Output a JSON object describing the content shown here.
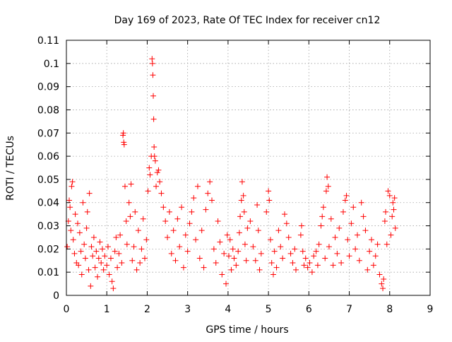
{
  "chart_data": {
    "type": "scatter",
    "title": "Day 169 of 2023, Rate Of TEC Index for receiver cn12",
    "xlabel": "GPS time / hours",
    "ylabel": "ROTI / TECUs",
    "xlim": [
      0,
      9
    ],
    "ylim": [
      0,
      0.11
    ],
    "xticks": [
      0,
      1,
      2,
      3,
      4,
      5,
      6,
      7,
      8,
      9
    ],
    "xtick_labels": [
      "0",
      "1",
      "2",
      "3",
      "4",
      "5",
      "6",
      "7",
      "8",
      "9"
    ],
    "yticks": [
      0,
      0.01,
      0.02,
      0.03,
      0.04,
      0.05,
      0.06,
      0.07,
      0.08,
      0.09,
      0.1,
      0.11
    ],
    "ytick_labels": [
      "0",
      "0.01",
      "0.02",
      "0.03",
      "0.04",
      "0.05",
      "0.06",
      "0.07",
      "0.08",
      "0.09",
      "0.1",
      "0.11"
    ],
    "grid": true,
    "marker": "+",
    "marker_color": "#ff0000",
    "series": [
      {
        "points": [
          [
            0.02,
            0.021
          ],
          [
            0.05,
            0.032
          ],
          [
            0.07,
            0.041
          ],
          [
            0.09,
            0.038
          ],
          [
            0.11,
            0.028
          ],
          [
            0.13,
            0.047
          ],
          [
            0.15,
            0.049
          ],
          [
            0.17,
            0.024
          ],
          [
            0.2,
            0.018
          ],
          [
            0.22,
            0.035
          ],
          [
            0.25,
            0.014
          ],
          [
            0.28,
            0.031
          ],
          [
            0.3,
            0.013
          ],
          [
            0.33,
            0.027
          ],
          [
            0.36,
            0.019
          ],
          [
            0.38,
            0.009
          ],
          [
            0.41,
            0.04
          ],
          [
            0.44,
            0.022
          ],
          [
            0.47,
            0.016
          ],
          [
            0.5,
            0.029
          ],
          [
            0.52,
            0.036
          ],
          [
            0.55,
            0.011
          ],
          [
            0.57,
            0.044
          ],
          [
            0.6,
            0.004
          ],
          [
            0.62,
            0.021
          ],
          [
            0.65,
            0.017
          ],
          [
            0.68,
            0.025
          ],
          [
            0.71,
            0.012
          ],
          [
            0.74,
            0.019
          ],
          [
            0.77,
            0.008
          ],
          [
            0.8,
            0.016
          ],
          [
            0.83,
            0.023
          ],
          [
            0.86,
            0.014
          ],
          [
            0.89,
            0.02
          ],
          [
            0.92,
            0.011
          ],
          [
            0.95,
            0.017
          ],
          [
            1.0,
            0.013
          ],
          [
            1.03,
            0.021
          ],
          [
            1.06,
            0.009
          ],
          [
            1.1,
            0.016
          ],
          [
            1.13,
            0.006
          ],
          [
            1.16,
            0.003
          ],
          [
            1.2,
            0.019
          ],
          [
            1.23,
            0.025
          ],
          [
            1.26,
            0.012
          ],
          [
            1.3,
            0.018
          ],
          [
            1.33,
            0.026
          ],
          [
            1.37,
            0.014
          ],
          [
            1.4,
            0.069
          ],
          [
            1.41,
            0.07
          ],
          [
            1.42,
            0.066
          ],
          [
            1.43,
            0.065
          ],
          [
            1.45,
            0.047
          ],
          [
            1.48,
            0.032
          ],
          [
            1.5,
            0.022
          ],
          [
            1.55,
            0.04
          ],
          [
            1.58,
            0.034
          ],
          [
            1.6,
            0.048
          ],
          [
            1.63,
            0.015
          ],
          [
            1.67,
            0.021
          ],
          [
            1.7,
            0.036
          ],
          [
            1.74,
            0.011
          ],
          [
            1.78,
            0.028
          ],
          [
            1.82,
            0.014
          ],
          [
            1.86,
            0.02
          ],
          [
            1.9,
            0.033
          ],
          [
            1.94,
            0.016
          ],
          [
            1.98,
            0.024
          ],
          [
            2.02,
            0.045
          ],
          [
            2.05,
            0.055
          ],
          [
            2.07,
            0.052
          ],
          [
            2.1,
            0.06
          ],
          [
            2.12,
            0.102
          ],
          [
            2.13,
            0.1
          ],
          [
            2.14,
            0.095
          ],
          [
            2.15,
            0.086
          ],
          [
            2.16,
            0.076
          ],
          [
            2.17,
            0.064
          ],
          [
            2.18,
            0.06
          ],
          [
            2.2,
            0.058
          ],
          [
            2.22,
            0.047
          ],
          [
            2.25,
            0.053
          ],
          [
            2.28,
            0.054
          ],
          [
            2.31,
            0.049
          ],
          [
            2.35,
            0.044
          ],
          [
            2.4,
            0.038
          ],
          [
            2.45,
            0.032
          ],
          [
            2.5,
            0.025
          ],
          [
            2.55,
            0.036
          ],
          [
            2.6,
            0.018
          ],
          [
            2.65,
            0.028
          ],
          [
            2.7,
            0.015
          ],
          [
            2.75,
            0.033
          ],
          [
            2.8,
            0.021
          ],
          [
            2.85,
            0.038
          ],
          [
            2.9,
            0.012
          ],
          [
            2.95,
            0.026
          ],
          [
            3.0,
            0.019
          ],
          [
            3.05,
            0.031
          ],
          [
            3.1,
            0.036
          ],
          [
            3.15,
            0.042
          ],
          [
            3.2,
            0.024
          ],
          [
            3.25,
            0.047
          ],
          [
            3.3,
            0.016
          ],
          [
            3.35,
            0.028
          ],
          [
            3.4,
            0.012
          ],
          [
            3.45,
            0.037
          ],
          [
            3.5,
            0.044
          ],
          [
            3.55,
            0.049
          ],
          [
            3.6,
            0.041
          ],
          [
            3.65,
            0.02
          ],
          [
            3.7,
            0.014
          ],
          [
            3.75,
            0.032
          ],
          [
            3.8,
            0.023
          ],
          [
            3.85,
            0.009
          ],
          [
            3.9,
            0.018
          ],
          [
            3.95,
            0.005
          ],
          [
            3.98,
            0.026
          ],
          [
            4.02,
            0.017
          ],
          [
            4.05,
            0.024
          ],
          [
            4.08,
            0.011
          ],
          [
            4.12,
            0.02
          ],
          [
            4.15,
            0.016
          ],
          [
            4.2,
            0.013
          ],
          [
            4.25,
            0.019
          ],
          [
            4.28,
            0.027
          ],
          [
            4.3,
            0.034
          ],
          [
            4.33,
            0.041
          ],
          [
            4.35,
            0.049
          ],
          [
            4.38,
            0.043
          ],
          [
            4.4,
            0.036
          ],
          [
            4.42,
            0.022
          ],
          [
            4.45,
            0.015
          ],
          [
            4.48,
            0.029
          ],
          [
            4.55,
            0.032
          ],
          [
            4.62,
            0.021
          ],
          [
            4.68,
            0.015
          ],
          [
            4.72,
            0.039
          ],
          [
            4.75,
            0.028
          ],
          [
            4.78,
            0.011
          ],
          [
            4.82,
            0.018
          ],
          [
            4.95,
            0.036
          ],
          [
            5.0,
            0.045
          ],
          [
            5.02,
            0.041
          ],
          [
            5.05,
            0.024
          ],
          [
            5.08,
            0.014
          ],
          [
            5.12,
            0.009
          ],
          [
            5.15,
            0.019
          ],
          [
            5.2,
            0.012
          ],
          [
            5.25,
            0.028
          ],
          [
            5.3,
            0.021
          ],
          [
            5.35,
            0.016
          ],
          [
            5.4,
            0.035
          ],
          [
            5.45,
            0.031
          ],
          [
            5.5,
            0.025
          ],
          [
            5.55,
            0.018
          ],
          [
            5.6,
            0.014
          ],
          [
            5.65,
            0.02
          ],
          [
            5.68,
            0.011
          ],
          [
            5.8,
            0.026
          ],
          [
            5.82,
            0.03
          ],
          [
            5.85,
            0.019
          ],
          [
            5.88,
            0.013
          ],
          [
            5.92,
            0.016
          ],
          [
            5.97,
            0.012
          ],
          [
            6.02,
            0.014
          ],
          [
            6.08,
            0.01
          ],
          [
            6.12,
            0.017
          ],
          [
            6.18,
            0.019
          ],
          [
            6.22,
            0.013
          ],
          [
            6.25,
            0.022
          ],
          [
            6.3,
            0.03
          ],
          [
            6.33,
            0.034
          ],
          [
            6.36,
            0.038
          ],
          [
            6.4,
            0.016
          ],
          [
            6.43,
            0.045
          ],
          [
            6.45,
            0.051
          ],
          [
            6.48,
            0.047
          ],
          [
            6.5,
            0.021
          ],
          [
            6.55,
            0.033
          ],
          [
            6.6,
            0.013
          ],
          [
            6.65,
            0.025
          ],
          [
            6.7,
            0.018
          ],
          [
            6.75,
            0.029
          ],
          [
            6.8,
            0.014
          ],
          [
            6.85,
            0.036
          ],
          [
            6.9,
            0.041
          ],
          [
            6.93,
            0.043
          ],
          [
            6.96,
            0.024
          ],
          [
            7.0,
            0.017
          ],
          [
            7.05,
            0.031
          ],
          [
            7.1,
            0.038
          ],
          [
            7.15,
            0.02
          ],
          [
            7.2,
            0.026
          ],
          [
            7.25,
            0.015
          ],
          [
            7.3,
            0.04
          ],
          [
            7.35,
            0.034
          ],
          [
            7.4,
            0.028
          ],
          [
            7.45,
            0.011
          ],
          [
            7.5,
            0.019
          ],
          [
            7.55,
            0.024
          ],
          [
            7.6,
            0.013
          ],
          [
            7.65,
            0.017
          ],
          [
            7.7,
            0.022
          ],
          [
            7.75,
            0.009
          ],
          [
            7.8,
            0.005
          ],
          [
            7.83,
            0.003
          ],
          [
            7.85,
            0.007
          ],
          [
            7.88,
            0.032
          ],
          [
            7.9,
            0.036
          ],
          [
            7.93,
            0.022
          ],
          [
            7.96,
            0.045
          ],
          [
            8.0,
            0.043
          ],
          [
            8.03,
            0.026
          ],
          [
            8.06,
            0.034
          ],
          [
            8.08,
            0.04
          ],
          [
            8.1,
            0.037
          ],
          [
            8.12,
            0.042
          ],
          [
            8.14,
            0.029
          ]
        ]
      }
    ]
  }
}
